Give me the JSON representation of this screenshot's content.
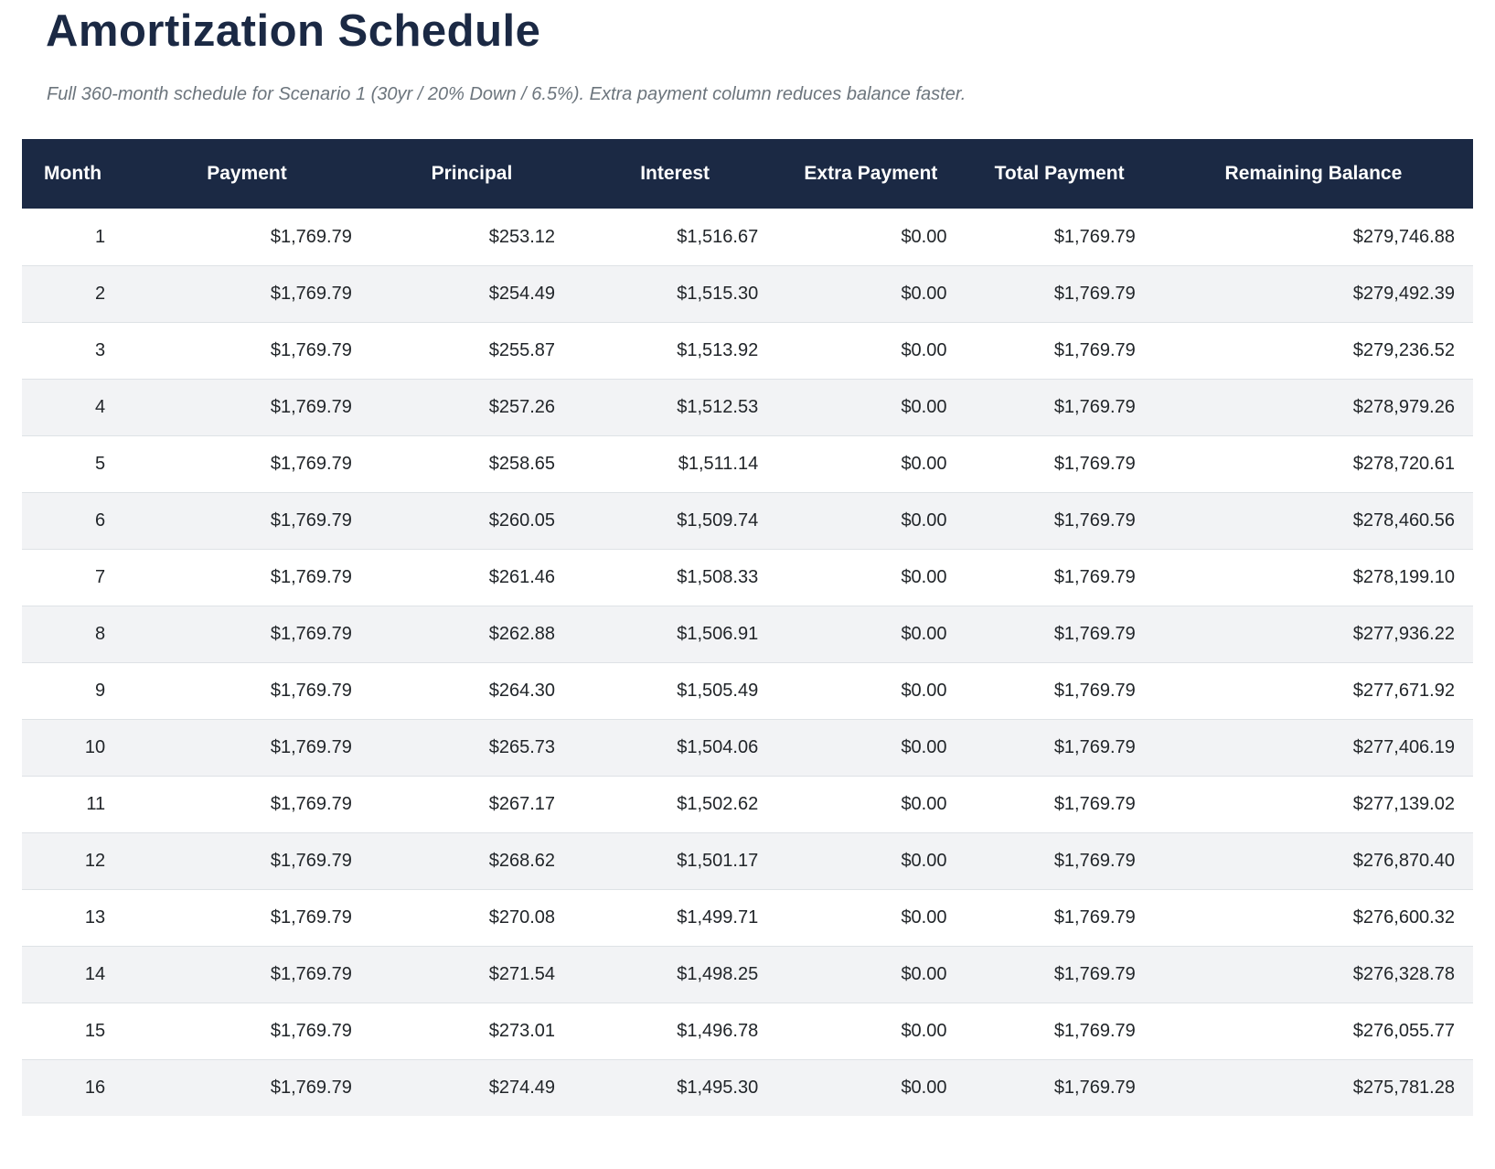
{
  "page": {
    "title": "Amortization Schedule",
    "subtitle": "Full 360-month schedule for Scenario 1 (30yr / 20% Down / 6.5%). Extra payment column reduces balance faster."
  },
  "colors": {
    "header_bg": "#1b2944",
    "title_text": "#1b2944",
    "subtitle_text": "#6c757d",
    "body_text": "#212529",
    "row_alt_bg": "#f2f3f5",
    "row_border": "#dee2e6"
  },
  "table": {
    "columns": [
      "Month",
      "Payment",
      "Principal",
      "Interest",
      "Extra Payment",
      "Total Payment",
      "Remaining Balance"
    ],
    "column_keys": [
      "month",
      "payment",
      "principal",
      "interest",
      "extra-payment",
      "total-payment",
      "remaining-balance"
    ],
    "rows": [
      [
        "1",
        "$1,769.79",
        "$253.12",
        "$1,516.67",
        "$0.00",
        "$1,769.79",
        "$279,746.88"
      ],
      [
        "2",
        "$1,769.79",
        "$254.49",
        "$1,515.30",
        "$0.00",
        "$1,769.79",
        "$279,492.39"
      ],
      [
        "3",
        "$1,769.79",
        "$255.87",
        "$1,513.92",
        "$0.00",
        "$1,769.79",
        "$279,236.52"
      ],
      [
        "4",
        "$1,769.79",
        "$257.26",
        "$1,512.53",
        "$0.00",
        "$1,769.79",
        "$278,979.26"
      ],
      [
        "5",
        "$1,769.79",
        "$258.65",
        "$1,511.14",
        "$0.00",
        "$1,769.79",
        "$278,720.61"
      ],
      [
        "6",
        "$1,769.79",
        "$260.05",
        "$1,509.74",
        "$0.00",
        "$1,769.79",
        "$278,460.56"
      ],
      [
        "7",
        "$1,769.79",
        "$261.46",
        "$1,508.33",
        "$0.00",
        "$1,769.79",
        "$278,199.10"
      ],
      [
        "8",
        "$1,769.79",
        "$262.88",
        "$1,506.91",
        "$0.00",
        "$1,769.79",
        "$277,936.22"
      ],
      [
        "9",
        "$1,769.79",
        "$264.30",
        "$1,505.49",
        "$0.00",
        "$1,769.79",
        "$277,671.92"
      ],
      [
        "10",
        "$1,769.79",
        "$265.73",
        "$1,504.06",
        "$0.00",
        "$1,769.79",
        "$277,406.19"
      ],
      [
        "11",
        "$1,769.79",
        "$267.17",
        "$1,502.62",
        "$0.00",
        "$1,769.79",
        "$277,139.02"
      ],
      [
        "12",
        "$1,769.79",
        "$268.62",
        "$1,501.17",
        "$0.00",
        "$1,769.79",
        "$276,870.40"
      ],
      [
        "13",
        "$1,769.79",
        "$270.08",
        "$1,499.71",
        "$0.00",
        "$1,769.79",
        "$276,600.32"
      ],
      [
        "14",
        "$1,769.79",
        "$271.54",
        "$1,498.25",
        "$0.00",
        "$1,769.79",
        "$276,328.78"
      ],
      [
        "15",
        "$1,769.79",
        "$273.01",
        "$1,496.78",
        "$0.00",
        "$1,769.79",
        "$276,055.77"
      ],
      [
        "16",
        "$1,769.79",
        "$274.49",
        "$1,495.30",
        "$0.00",
        "$1,769.79",
        "$275,781.28"
      ]
    ]
  }
}
